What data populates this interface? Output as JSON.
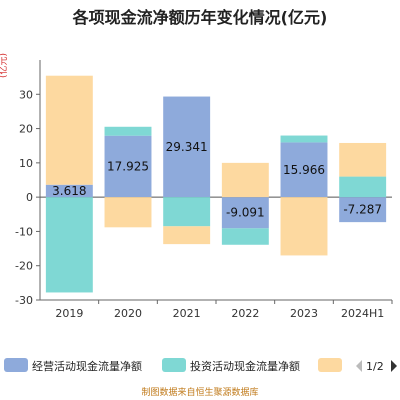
{
  "chart_data": {
    "type": "bar",
    "stacked": true,
    "title": "各项现金流净额历年变化情况(亿元)",
    "ylabel": "(亿元)",
    "categories": [
      "2019",
      "2020",
      "2021",
      "2022",
      "2023",
      "2024H1"
    ],
    "ylim": [
      -30,
      40
    ],
    "yticks": [
      -30,
      -20,
      -10,
      0,
      10,
      20,
      30
    ],
    "grid": false,
    "series": [
      {
        "name": "经营活动现金流量净额",
        "color": "#8eaadb",
        "values": [
          3.618,
          17.925,
          29.341,
          -9.091,
          15.966,
          -7.287
        ]
      },
      {
        "name": "投资活动现金流量净额",
        "color": "#7fd8d4",
        "values": [
          -27.8,
          2.6,
          -8.5,
          -4.8,
          2.0,
          6.0
        ]
      },
      {
        "name": "",
        "color": "#fdd9a0",
        "values": [
          31.8,
          -8.8,
          -5.2,
          10.0,
          -17.0,
          9.8
        ]
      }
    ],
    "data_labels": [
      "3.618",
      "17.925",
      "29.341",
      "-9.091",
      "15.966",
      "-7.287"
    ],
    "legend": {
      "position": "bottom",
      "page": "1/2"
    }
  },
  "source": "制图数据来自恒生聚源数据库"
}
